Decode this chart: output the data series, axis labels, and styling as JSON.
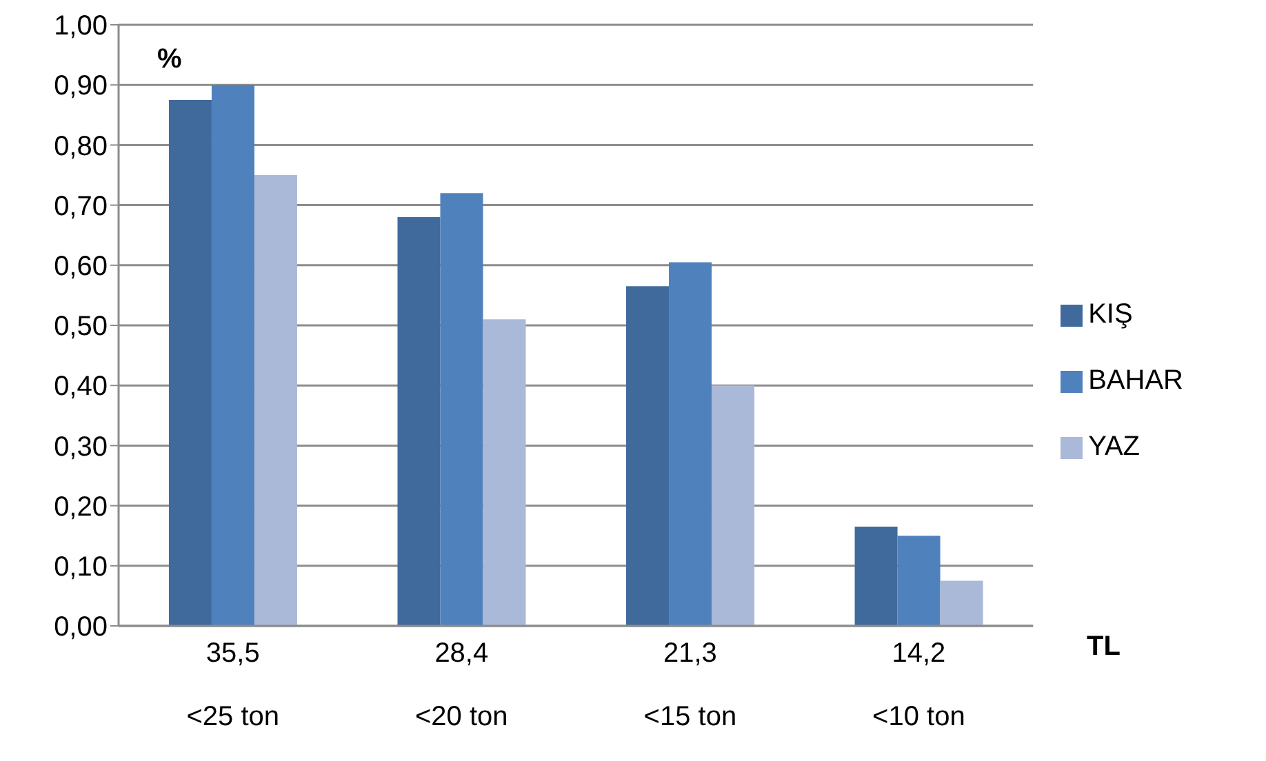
{
  "chart_data": {
    "type": "bar",
    "xlabel": "TL",
    "ylabel": "%",
    "categories": [
      "35,5\n<25 ton",
      "28,4\n<20 ton",
      "21,3\n<15 ton",
      "14,2\n<10 ton"
    ],
    "series": [
      {
        "name": "KIŞ",
        "color": "#416a9c",
        "values": [
          0.875,
          0.68,
          0.565,
          0.165
        ]
      },
      {
        "name": "BAHAR",
        "color": "#4f81bd",
        "values": [
          0.9,
          0.72,
          0.605,
          0.15
        ]
      },
      {
        "name": "YAZ",
        "color": "#aab9d7",
        "values": [
          0.75,
          0.51,
          0.4,
          0.075
        ]
      }
    ],
    "ylim": [
      0,
      1
    ],
    "yticks": [
      {
        "value": 0,
        "label": "0,00"
      },
      {
        "value": 0.1,
        "label": "0,10"
      },
      {
        "value": 0.2,
        "label": "0,20"
      },
      {
        "value": 0.3,
        "label": "0,30"
      },
      {
        "value": 0.4,
        "label": "0,40"
      },
      {
        "value": 0.5,
        "label": "0,50"
      },
      {
        "value": 0.6,
        "label": "0,60"
      },
      {
        "value": 0.7,
        "label": "0,70"
      },
      {
        "value": 0.8,
        "label": "0,80"
      },
      {
        "value": 0.9,
        "label": "0,90"
      },
      {
        "value": 1,
        "label": "1,00"
      }
    ],
    "grid": "y",
    "legend": "right"
  }
}
